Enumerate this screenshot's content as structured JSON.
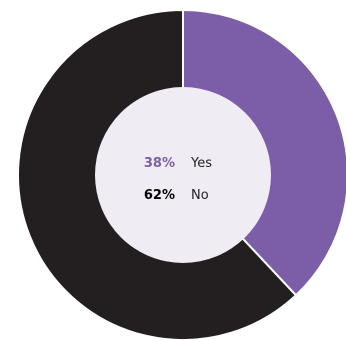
{
  "chart_data": {
    "type": "pie",
    "slices": [
      {
        "label": "Yes",
        "value": 38,
        "display": "38%",
        "color": "#7b5ea7"
      },
      {
        "label": "No",
        "value": 62,
        "display": "62%",
        "color": "#231f20"
      }
    ],
    "donut": true,
    "legend_placement": "center"
  }
}
